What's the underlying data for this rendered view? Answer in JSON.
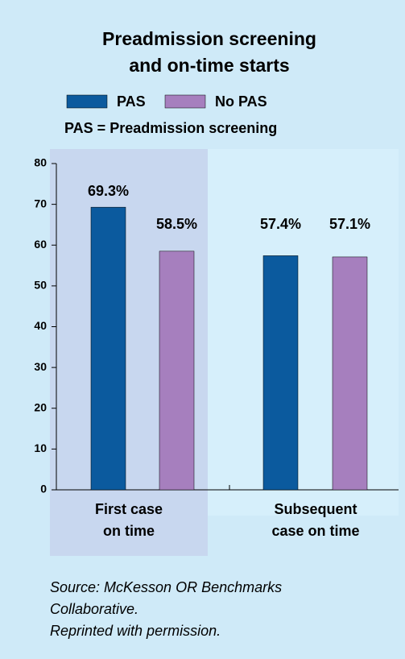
{
  "chart_data": {
    "type": "bar",
    "title": [
      "Preadmission screening",
      "and on-time starts"
    ],
    "subtitle": "PAS = Preadmission screening",
    "categories": [
      [
        "First case",
        "on time"
      ],
      [
        "Subsequent",
        "case on time"
      ]
    ],
    "series": [
      {
        "name": "PAS",
        "color": "#0b5a9e",
        "values": [
          69.3,
          57.4
        ],
        "value_labels": [
          "69.3%",
          "57.4%"
        ]
      },
      {
        "name": "No PAS",
        "color": "#a67fbe",
        "values": [
          58.5,
          57.1
        ],
        "value_labels": [
          "58.5%",
          "57.1%"
        ]
      }
    ],
    "ylim": [
      0,
      80
    ],
    "yticks": [
      0,
      10,
      20,
      30,
      40,
      50,
      60,
      70,
      80
    ],
    "source": [
      "Source: McKesson OR Benchmarks",
      "Collaborative.",
      "Reprinted with permission."
    ]
  }
}
